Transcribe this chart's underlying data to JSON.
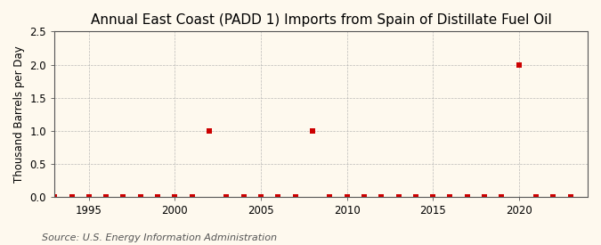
{
  "title": "Annual East Coast (PADD 1) Imports from Spain of Distillate Fuel Oil",
  "ylabel": "Thousand Barrels per Day",
  "source": "Source: U.S. Energy Information Administration",
  "xlim": [
    1993,
    2024
  ],
  "ylim": [
    0,
    2.5
  ],
  "yticks": [
    0.0,
    0.5,
    1.0,
    1.5,
    2.0,
    2.5
  ],
  "xticks": [
    1995,
    2000,
    2005,
    2010,
    2015,
    2020
  ],
  "years": [
    1993,
    1994,
    1995,
    1996,
    1997,
    1998,
    1999,
    2000,
    2001,
    2002,
    2003,
    2004,
    2005,
    2006,
    2007,
    2008,
    2009,
    2010,
    2011,
    2012,
    2013,
    2014,
    2015,
    2016,
    2017,
    2018,
    2019,
    2020,
    2021,
    2022,
    2023
  ],
  "values": [
    0,
    0,
    0,
    0,
    0,
    0,
    0,
    0,
    0,
    1.0,
    0,
    0,
    0,
    0,
    0,
    1.0,
    0,
    0,
    0,
    0,
    0,
    0,
    0,
    0,
    0,
    0,
    0,
    2.0,
    0,
    0,
    0
  ],
  "marker_color": "#cc0000",
  "marker_size": 4,
  "background_color": "#fef9ee",
  "plot_bg_color": "#fef9ee",
  "grid_color": "#aaaaaa",
  "grid_linestyle": "--",
  "title_fontsize": 11,
  "label_fontsize": 8.5,
  "tick_fontsize": 8.5,
  "source_fontsize": 8
}
